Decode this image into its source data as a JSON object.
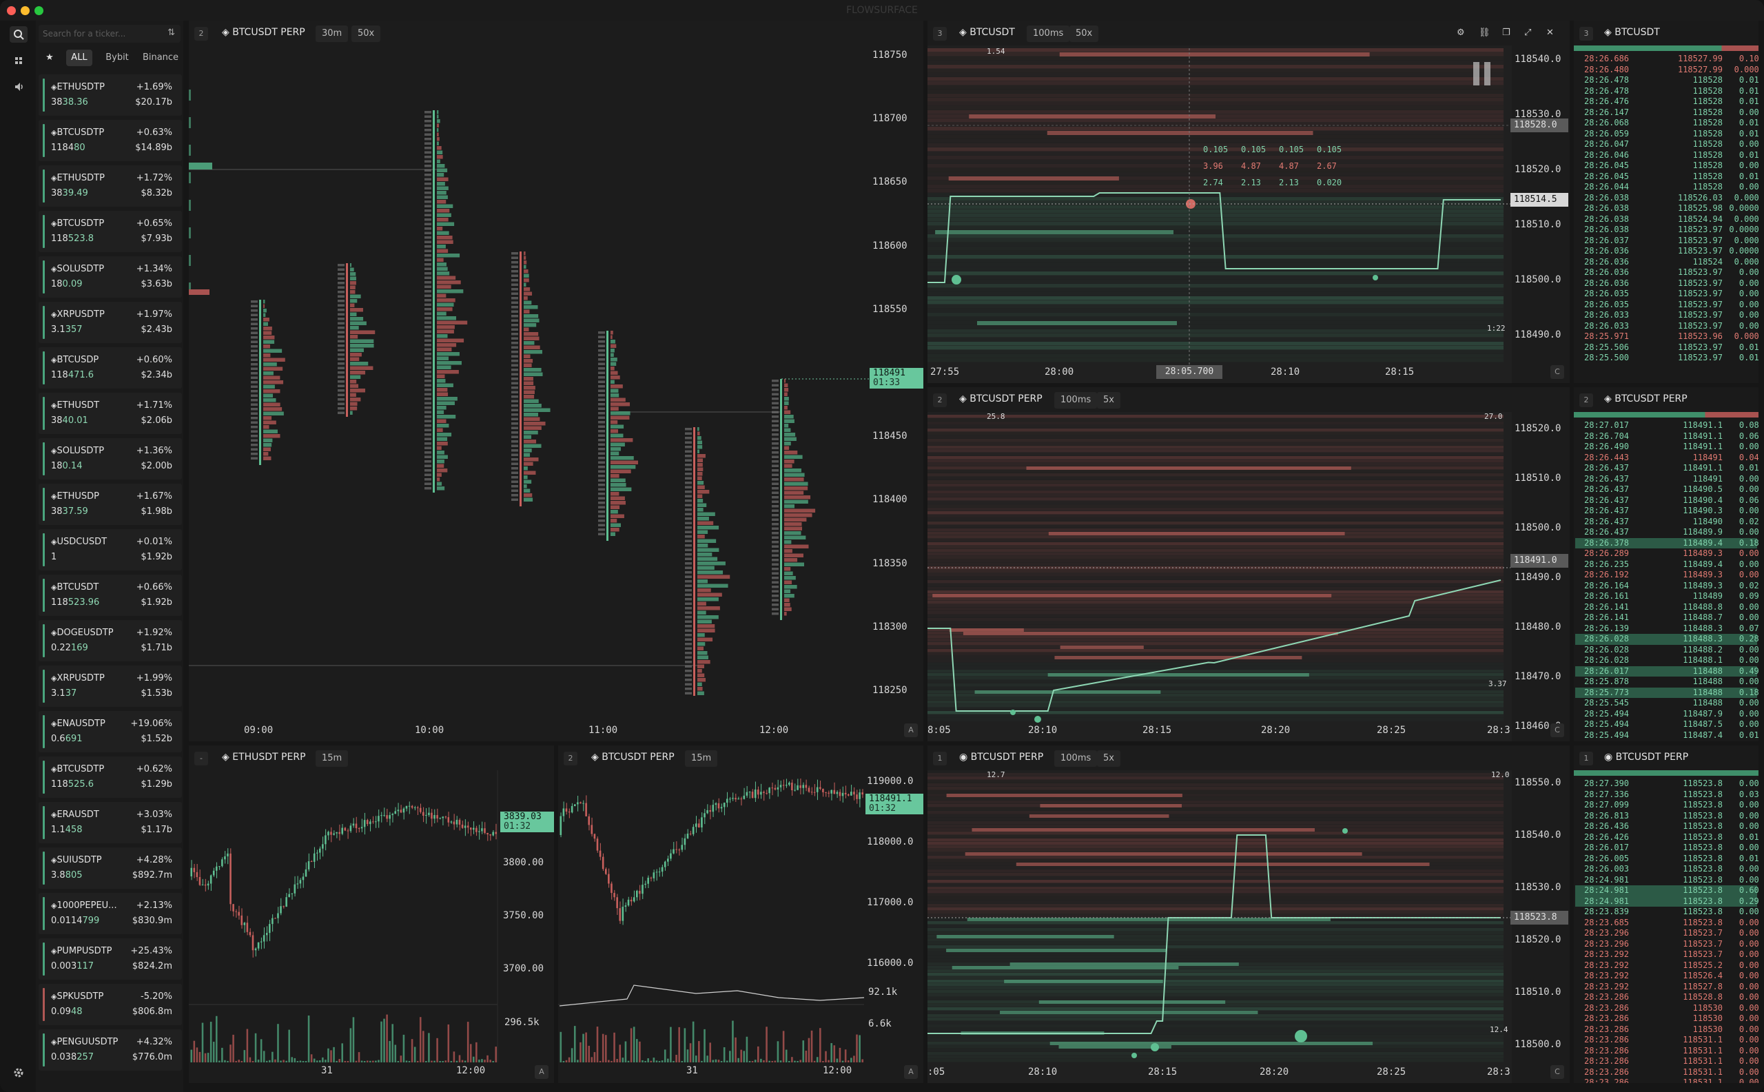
{
  "window": {
    "title": "FLOWSURFACE"
  },
  "colors": {
    "green": "#5fbf92",
    "red": "#c9605d",
    "bg": "#1c1c1c",
    "accent_tag": "#68c79d"
  },
  "rail": {
    "icons": [
      "search-icon",
      "layout-icon",
      "audio-icon",
      "gear-icon"
    ]
  },
  "sidebar": {
    "search": {
      "placeholder": "Search for a ticker..."
    },
    "filters": {
      "star": "★",
      "all": "ALL",
      "bybit": "Bybit",
      "binance": "Binance"
    },
    "tickers": [
      {
        "sym": "ETHUSDTP",
        "chg": "+1.69%",
        "px_a": "38",
        "px_b": "38.36",
        "vol": "$20.17b",
        "dir": "up"
      },
      {
        "sym": "BTCUSDTP",
        "chg": "+0.63%",
        "px_a": "1184",
        "px_b": "80",
        "vol": "$14.89b",
        "dir": "up"
      },
      {
        "sym": "ETHUSDTP",
        "chg": "+1.72%",
        "px_a": "38",
        "px_b": "39.49",
        "vol": "$8.32b",
        "dir": "up"
      },
      {
        "sym": "BTCUSDTP",
        "chg": "+0.65%",
        "px_a": "118",
        "px_b": "523.8",
        "vol": "$7.93b",
        "dir": "up"
      },
      {
        "sym": "SOLUSDTP",
        "chg": "+1.34%",
        "px_a": "18",
        "px_b": "0.09",
        "vol": "$3.63b",
        "dir": "up"
      },
      {
        "sym": "XRPUSDTP",
        "chg": "+1.97%",
        "px_a": "3.1",
        "px_b": "357",
        "vol": "$2.43b",
        "dir": "up"
      },
      {
        "sym": "BTCUSDP",
        "chg": "+0.60%",
        "px_a": "118",
        "px_b": "471.6",
        "vol": "$2.34b",
        "dir": "up"
      },
      {
        "sym": "ETHUSDT",
        "chg": "+1.71%",
        "px_a": "38",
        "px_b": "40.01",
        "vol": "$2.06b",
        "dir": "up"
      },
      {
        "sym": "SOLUSDTP",
        "chg": "+1.36%",
        "px_a": "18",
        "px_b": "0.14",
        "vol": "$2.00b",
        "dir": "up"
      },
      {
        "sym": "ETHUSDP",
        "chg": "+1.67%",
        "px_a": "38",
        "px_b": "37.59",
        "vol": "$1.98b",
        "dir": "up"
      },
      {
        "sym": "USDCUSDT",
        "chg": "+0.01%",
        "px_a": "1",
        "px_b": "",
        "vol": "$1.92b",
        "dir": "up"
      },
      {
        "sym": "BTCUSDT",
        "chg": "+0.66%",
        "px_a": "118",
        "px_b": "523.96",
        "vol": "$1.92b",
        "dir": "up"
      },
      {
        "sym": "DOGEUSDTP",
        "chg": "+1.92%",
        "px_a": "0.22",
        "px_b": "169",
        "vol": "$1.71b",
        "dir": "up"
      },
      {
        "sym": "XRPUSDTP",
        "chg": "+1.99%",
        "px_a": "3.1",
        "px_b": "37",
        "vol": "$1.53b",
        "dir": "up"
      },
      {
        "sym": "ENAUSDTP",
        "chg": "+19.06%",
        "px_a": "0.6",
        "px_b": "691",
        "vol": "$1.52b",
        "dir": "up"
      },
      {
        "sym": "BTCUSDTP",
        "chg": "+0.62%",
        "px_a": "118",
        "px_b": "525.6",
        "vol": "$1.29b",
        "dir": "up"
      },
      {
        "sym": "ERAUSDT",
        "chg": "+3.03%",
        "px_a": "1.1",
        "px_b": "458",
        "vol": "$1.17b",
        "dir": "up"
      },
      {
        "sym": "SUIUSDTP",
        "chg": "+4.28%",
        "px_a": "3.8",
        "px_b": "805",
        "vol": "$892.7m",
        "dir": "up"
      },
      {
        "sym": "1000PEPEU...",
        "chg": "+2.13%",
        "px_a": "0.0114",
        "px_b": "799",
        "vol": "$830.9m",
        "dir": "up"
      },
      {
        "sym": "PUMPUSDTP",
        "chg": "+25.43%",
        "px_a": "0.003",
        "px_b": "117",
        "vol": "$824.2m",
        "dir": "up"
      },
      {
        "sym": "SPKUSDTP",
        "chg": "-5.20%",
        "px_a": "0.09",
        "px_b": "48",
        "vol": "$806.8m",
        "dir": "down"
      },
      {
        "sym": "PENGUUSDTP",
        "chg": "+4.32%",
        "px_a": "0.038",
        "px_b": "257",
        "vol": "$776.0m",
        "dir": "up"
      }
    ]
  },
  "footprint": {
    "idx": "2",
    "title": "BTCUSDT PERP",
    "tf": "30m",
    "ticks": "50x",
    "y_labels": [
      "118750",
      "118700",
      "118650",
      "118600",
      "118550",
      "118500",
      "118450",
      "118400",
      "118350",
      "118300",
      "118250"
    ],
    "x_labels": [
      "09:00",
      "10:00",
      "11:00",
      "12:00"
    ],
    "price": "118491",
    "countdown": "01:33",
    "corner": "A"
  },
  "eth_candles": {
    "idx": "-",
    "title": "ETHUSDT PERP",
    "tf": "15m",
    "y_labels": [
      "3800.00",
      "3750.00",
      "3700.00"
    ],
    "vol_label": "296.5k",
    "x_labels": [
      "31",
      "12:00"
    ],
    "price": "3839.03",
    "countdown": "01:32",
    "corner": "A"
  },
  "btc_candles": {
    "idx": "2",
    "title": "BTCUSDT PERP",
    "tf": "15m",
    "y_labels": [
      "119000.0",
      "118000.0",
      "117000.0",
      "116000.0"
    ],
    "oi_label": "92.1k",
    "vol_label": "6.6k",
    "x_labels": [
      "31",
      "12:00"
    ],
    "price": "118491.1",
    "countdown": "01:32",
    "corner": "A"
  },
  "heatmap1": {
    "idx": "3",
    "title": "BTCUSDT",
    "tf": "100ms",
    "ticks": "50x",
    "y_labels": [
      "118540.0",
      "118530.0",
      "118520.0",
      "118510.0",
      "118500.0",
      "118490.0"
    ],
    "x_labels": [
      "27:55",
      "28:00",
      "28:05.700",
      "28:10",
      "28:15"
    ],
    "crosshair_price": "118528.0",
    "last_price": "118514.5",
    "max_label": "1.54",
    "min_label": "1:22",
    "tooltip": [
      [
        "0.105",
        "0.105",
        "0.105",
        "0.105"
      ],
      [
        "3.96",
        "4.87",
        "4.87",
        "2.67"
      ],
      [
        "2.74",
        "2.13",
        "2.13",
        "0.020"
      ]
    ],
    "corner": "C"
  },
  "heatmap2": {
    "idx": "2",
    "title": "BTCUSDT PERP",
    "tf": "100ms",
    "ticks": "5x",
    "y_labels": [
      "118520.0",
      "118510.0",
      "118500.0",
      "118490.0",
      "118480.0",
      "118470.0",
      "118460.0"
    ],
    "x_labels": [
      "8:05",
      "28:10",
      "28:15",
      "28:20",
      "28:25",
      "28:3"
    ],
    "last_price": "118491.0",
    "max_label": "25.8",
    "max_label2": "27.0",
    "min_label": "3.37",
    "corner": "C"
  },
  "heatmap3": {
    "idx": "1",
    "title": "BTCUSDT PERP",
    "tf": "100ms",
    "ticks": "5x",
    "y_labels": [
      "118550.0",
      "118540.0",
      "118530.0",
      "118520.0",
      "118510.0",
      "118500.0"
    ],
    "x_labels": [
      ":05",
      "28:10",
      "28:15",
      "28:20",
      "28:25",
      "28:3"
    ],
    "last_price": "118523.8",
    "max_label": "12.7",
    "max_label2": "12.0",
    "min_label": "12.4",
    "corner": "C"
  },
  "tape1": {
    "idx": "3",
    "title": "BTCUSDT",
    "rows": [
      [
        "28:26.686",
        "118527.99",
        "0.100",
        "s"
      ],
      [
        "28:26.480",
        "118527.99",
        "0.0006",
        "s"
      ],
      [
        "28:26.478",
        "118528",
        "0.010",
        "b"
      ],
      [
        "28:26.478",
        "118528",
        "0.010",
        "b"
      ],
      [
        "28:26.476",
        "118528",
        "0.010",
        "b"
      ],
      [
        "28:26.147",
        "118528",
        "0.006",
        "b"
      ],
      [
        "28:26.068",
        "118528",
        "0.010",
        "b"
      ],
      [
        "28:26.059",
        "118528",
        "0.010",
        "b"
      ],
      [
        "28:26.047",
        "118528",
        "0.007",
        "b"
      ],
      [
        "28:26.046",
        "118528",
        "0.010",
        "b"
      ],
      [
        "28:26.045",
        "118528",
        "0.007",
        "b"
      ],
      [
        "28:26.045",
        "118528",
        "0.011",
        "b"
      ],
      [
        "28:26.044",
        "118528",
        "0.003",
        "b"
      ],
      [
        "28:26.038",
        "118526.03",
        "0.0006",
        "b"
      ],
      [
        "28:26.038",
        "118525.98",
        "0.00009",
        "b"
      ],
      [
        "28:26.038",
        "118524.94",
        "0.0001",
        "b"
      ],
      [
        "28:26.038",
        "118523.97",
        "0.00005",
        "b"
      ],
      [
        "28:26.037",
        "118523.97",
        "0.0001",
        "b"
      ],
      [
        "28:26.036",
        "118523.97",
        "0.00005",
        "b"
      ],
      [
        "28:26.036",
        "118524",
        "0.0006",
        "b"
      ],
      [
        "28:26.036",
        "118523.97",
        "0.004",
        "b"
      ],
      [
        "28:26.036",
        "118523.97",
        "0.007",
        "b"
      ],
      [
        "28:26.035",
        "118523.97",
        "0.007",
        "b"
      ],
      [
        "28:26.035",
        "118523.97",
        "0.007",
        "b"
      ],
      [
        "28:26.033",
        "118523.97",
        "0.007",
        "b"
      ],
      [
        "28:26.033",
        "118523.97",
        "0.006",
        "b"
      ],
      [
        "28:25.971",
        "118523.96",
        "0.0002",
        "s"
      ],
      [
        "28:25.506",
        "118523.97",
        "0.010",
        "b"
      ],
      [
        "28:25.500",
        "118523.97",
        "0.010",
        "b"
      ]
    ]
  },
  "tape2": {
    "idx": "2",
    "title": "BTCUSDT PERP",
    "rows": [
      [
        "28:27.017",
        "118491.1",
        "0.081",
        "b"
      ],
      [
        "28:26.704",
        "118491.1",
        "0.069",
        "b"
      ],
      [
        "28:26.490",
        "118491.1",
        "0.001",
        "b"
      ],
      [
        "28:26.443",
        "118491",
        "0.045",
        "s"
      ],
      [
        "28:26.437",
        "118491.1",
        "0.019",
        "b"
      ],
      [
        "28:26.437",
        "118491",
        "0.002",
        "b"
      ],
      [
        "28:26.437",
        "118490.5",
        "0.006",
        "b"
      ],
      [
        "28:26.437",
        "118490.4",
        "0.067",
        "b"
      ],
      [
        "28:26.437",
        "118490.3",
        "0.002",
        "b"
      ],
      [
        "28:26.437",
        "118490",
        "0.026",
        "b"
      ],
      [
        "28:26.437",
        "118489.9",
        "0.008",
        "b"
      ],
      [
        "28:26.378",
        "118489.4",
        "0.183",
        "b"
      ],
      [
        "28:26.289",
        "118489.3",
        "0.002",
        "s"
      ],
      [
        "28:26.235",
        "118489.4",
        "0.008",
        "b"
      ],
      [
        "28:26.192",
        "118489.3",
        "0.001",
        "s"
      ],
      [
        "28:26.164",
        "118489.3",
        "0.024",
        "b"
      ],
      [
        "28:26.161",
        "118489",
        "0.096",
        "b"
      ],
      [
        "28:26.141",
        "118488.8",
        "0.001",
        "b"
      ],
      [
        "28:26.141",
        "118488.7",
        "0.002",
        "b"
      ],
      [
        "28:26.139",
        "118488.3",
        "0.079",
        "b"
      ],
      [
        "28:26.028",
        "118488.3",
        "0.286",
        "b"
      ],
      [
        "28:26.028",
        "118488.2",
        "0.002",
        "b"
      ],
      [
        "28:26.028",
        "118488.1",
        "0.007",
        "b"
      ],
      [
        "28:26.017",
        "118488",
        "0.495",
        "b"
      ],
      [
        "28:25.878",
        "118488",
        "0.005",
        "b"
      ],
      [
        "28:25.773",
        "118488",
        "0.180",
        "b"
      ],
      [
        "28:25.545",
        "118488",
        "0.002",
        "b"
      ],
      [
        "28:25.494",
        "118487.9",
        "0.002",
        "b"
      ],
      [
        "28:25.494",
        "118487.5",
        "0.002",
        "b"
      ],
      [
        "28:25.494",
        "118487.4",
        "0.017",
        "b"
      ]
    ]
  },
  "tape3": {
    "idx": "1",
    "title": "BTCUSDT PERP",
    "rows": [
      [
        "28:27.390",
        "118523.8",
        "0.001",
        "b"
      ],
      [
        "28:27.336",
        "118523.8",
        "0.038",
        "b"
      ],
      [
        "28:27.099",
        "118523.8",
        "0.001",
        "b"
      ],
      [
        "28:26.813",
        "118523.8",
        "0.002",
        "b"
      ],
      [
        "28:26.436",
        "118523.8",
        "0.001",
        "b"
      ],
      [
        "28:26.426",
        "118523.8",
        "0.016",
        "b"
      ],
      [
        "28:26.017",
        "118523.8",
        "0.002",
        "b"
      ],
      [
        "28:26.005",
        "118523.8",
        "0.011",
        "b"
      ],
      [
        "28:26.003",
        "118523.8",
        "0.001",
        "b"
      ],
      [
        "28:24.981",
        "118523.8",
        "0.004",
        "b"
      ],
      [
        "28:24.981",
        "118523.8",
        "0.604",
        "b"
      ],
      [
        "28:24.981",
        "118523.8",
        "0.299",
        "b"
      ],
      [
        "28:23.839",
        "118523.8",
        "0.001",
        "b"
      ],
      [
        "28:23.685",
        "118523.8",
        "0.002",
        "s"
      ],
      [
        "28:23.296",
        "118523.7",
        "0.005",
        "s"
      ],
      [
        "28:23.296",
        "118523.7",
        "0.001",
        "s"
      ],
      [
        "28:23.292",
        "118523.7",
        "0.002",
        "s"
      ],
      [
        "28:23.292",
        "118525.2",
        "0.002",
        "s"
      ],
      [
        "28:23.292",
        "118526.4",
        "0.001",
        "s"
      ],
      [
        "28:23.292",
        "118527.8",
        "0.002",
        "s"
      ],
      [
        "28:23.286",
        "118528.8",
        "0.002",
        "s"
      ],
      [
        "28:23.286",
        "118530",
        "0.002",
        "s"
      ],
      [
        "28:23.286",
        "118530",
        "0.002",
        "s"
      ],
      [
        "28:23.286",
        "118530",
        "0.001",
        "s"
      ],
      [
        "28:23.286",
        "118531.1",
        "0.001",
        "s"
      ],
      [
        "28:23.286",
        "118531.1",
        "0.002",
        "s"
      ],
      [
        "28:23.286",
        "118531.1",
        "0.002",
        "s"
      ],
      [
        "28:23.286",
        "118531.1",
        "0.001",
        "s"
      ],
      [
        "28:23.286",
        "118531.1",
        "0.001",
        "s"
      ],
      [
        "28:23.286",
        "118531.1",
        "0.008",
        "s"
      ]
    ]
  }
}
